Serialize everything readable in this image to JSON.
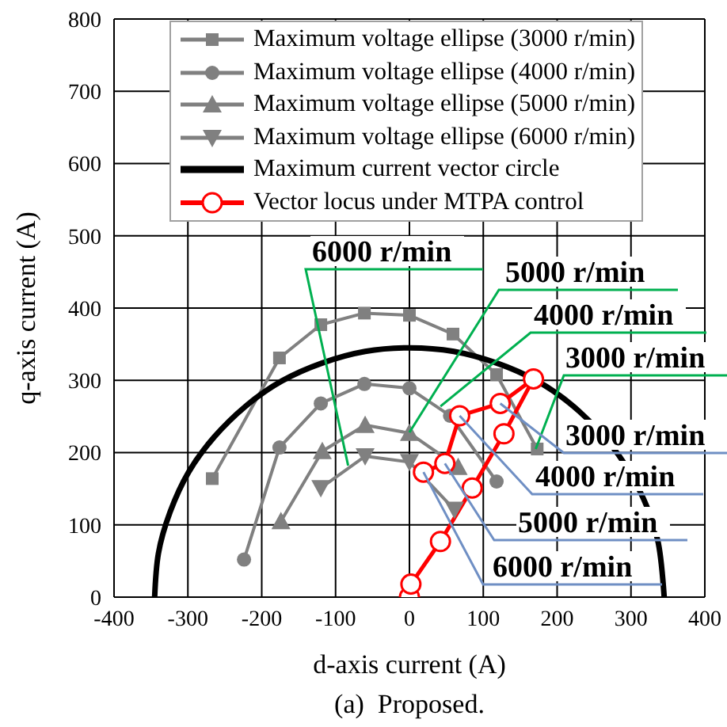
{
  "chart_data": {
    "type": "line",
    "xlabel": "d-axis current (A)",
    "ylabel": "q-axis current (A)",
    "xlim": [
      -400,
      400
    ],
    "xticks": [
      -400,
      -300,
      -200,
      -100,
      0,
      100,
      200,
      300,
      400
    ],
    "ylim": [
      0,
      800
    ],
    "yticks": [
      0,
      100,
      200,
      300,
      400,
      500,
      600,
      700,
      800
    ],
    "grid": true,
    "legend": "top",
    "series": [
      {
        "name": "Maximum voltage ellipse (3000 r/min)",
        "color": "#808080",
        "marker": "square",
        "x": [
          -267,
          -176,
          -120,
          -61,
          0,
          59,
          118,
          173
        ],
        "values": [
          164,
          331,
          377,
          393,
          390,
          364,
          308,
          205
        ]
      },
      {
        "name": "Maximum voltage ellipse (4000 r/min)",
        "color": "#808080",
        "marker": "circle",
        "x": [
          -224,
          -176,
          -120,
          -61,
          0,
          55,
          118
        ],
        "values": [
          52,
          207,
          268,
          295,
          289,
          251,
          160
        ]
      },
      {
        "name": "Maximum voltage ellipse (5000 r/min)",
        "color": "#808080",
        "marker": "triangle",
        "x": [
          -174,
          -118,
          -60,
          0,
          66
        ],
        "values": [
          105,
          202,
          238,
          227,
          180
        ]
      },
      {
        "name": "Maximum voltage ellipse (6000 r/min)",
        "color": "#808080",
        "marker": "triangle-down",
        "x": [
          -120,
          -60,
          0,
          61
        ],
        "values": [
          151,
          195,
          187,
          121
        ]
      },
      {
        "name": "Maximum current vector circle",
        "color": "#000000",
        "marker": "none",
        "x": [
          -345,
          -340,
          -324,
          -299,
          -264,
          -222,
          -173,
          -118,
          -60,
          0,
          60,
          118,
          173,
          230,
          283,
          317,
          337,
          345
        ],
        "values": [
          0,
          60,
          118,
          173,
          222,
          264,
          299,
          324,
          340,
          345,
          340,
          324,
          299,
          257,
          197,
          136,
          75,
          0
        ]
      },
      {
        "name": "Vector locus under MTPA control",
        "color": "#ff0000",
        "marker": "circle",
        "x": [
          0,
          2,
          42,
          85,
          128,
          168,
          123,
          68,
          48,
          19
        ],
        "values": [
          0,
          18,
          77,
          151,
          226,
          302,
          268,
          251,
          185,
          173
        ]
      }
    ],
    "annotations": [
      {
        "text": "6000 r/min",
        "x": -83,
        "y": 182
      },
      {
        "text": "5000 r/min",
        "x": 0,
        "y": 228
      },
      {
        "text": "4000 r/min",
        "x": 42,
        "y": 264
      },
      {
        "text": "3000 r/min",
        "x": 171,
        "y": 205
      },
      {
        "text": "3000 r/min",
        "x": 123,
        "y": 268
      },
      {
        "text": "4000 r/min",
        "x": 68,
        "y": 251
      },
      {
        "text": "5000 r/min",
        "x": 48,
        "y": 185
      },
      {
        "text": "6000 r/min",
        "x": 19,
        "y": 173
      },
      "(a)  Proposed."
    ]
  }
}
